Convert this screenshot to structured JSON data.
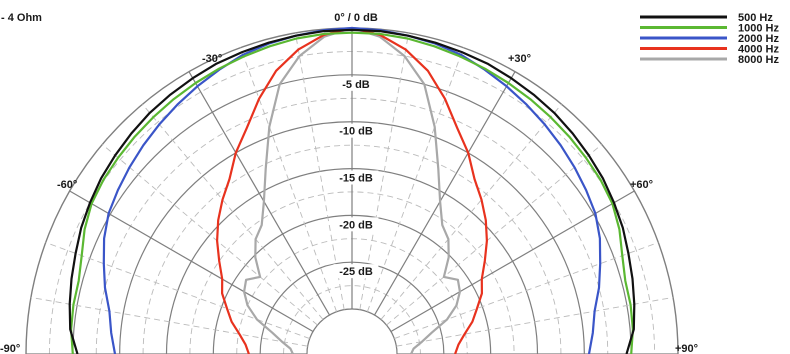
{
  "chart_data": {
    "type": "polar",
    "impedance_label": "- 4 Ohm",
    "radial_axis": {
      "unit": "dB",
      "range": [
        -30,
        0
      ],
      "ticks": [
        {
          "value": 0,
          "label": "0° / 0 dB"
        },
        {
          "value": -5,
          "label": "-5 dB"
        },
        {
          "value": -10,
          "label": "-10 dB"
        },
        {
          "value": -15,
          "label": "-15 dB"
        },
        {
          "value": -20,
          "label": "-20 dB"
        },
        {
          "value": -25,
          "label": "-25 dB"
        }
      ]
    },
    "angle_axis": {
      "range": [
        -90,
        90
      ],
      "ticks": [
        {
          "value": -90,
          "label": "-90°"
        },
        {
          "value": -60,
          "label": "-60°"
        },
        {
          "value": -30,
          "label": "-30°"
        },
        {
          "value": 30,
          "label": "+30°"
        },
        {
          "value": 60,
          "label": "+60°"
        },
        {
          "value": 90,
          "label": "+90°"
        }
      ]
    },
    "grid": true,
    "legend_position": "top-right",
    "series": [
      {
        "name": "500 Hz",
        "color": "#111111",
        "angles": [
          -90,
          -85,
          -80,
          -75,
          -70,
          -65,
          -60,
          -55,
          -50,
          -45,
          -40,
          -35,
          -30,
          -25,
          -20,
          -15,
          -10,
          -5,
          0,
          5,
          10,
          15,
          20,
          25,
          30,
          35,
          40,
          45,
          50,
          55,
          60,
          65,
          70,
          75,
          80,
          85,
          90
        ],
        "values": [
          -5.5,
          -4.6,
          -4.2,
          -3.8,
          -3.4,
          -2.9,
          -2.5,
          -2.1,
          -1.8,
          -1.5,
          -1.2,
          -1.0,
          -0.8,
          -0.6,
          -0.5,
          -0.4,
          -0.3,
          -0.2,
          -0.2,
          -0.2,
          -0.3,
          -0.4,
          -0.5,
          -0.6,
          -0.8,
          -1.0,
          -1.2,
          -1.5,
          -1.8,
          -2.1,
          -2.5,
          -2.9,
          -3.4,
          -3.8,
          -4.2,
          -4.6,
          -5.5
        ]
      },
      {
        "name": "1000 Hz",
        "color": "#5bb832",
        "angles": [
          -90,
          -85,
          -80,
          -75,
          -70,
          -65,
          -60,
          -55,
          -50,
          -45,
          -40,
          -35,
          -30,
          -25,
          -20,
          -15,
          -10,
          -5,
          0,
          5,
          10,
          15,
          20,
          25,
          30,
          35,
          40,
          45,
          50,
          55,
          60,
          65,
          70,
          75,
          80,
          85,
          90
        ],
        "values": [
          -5.0,
          -4.7,
          -4.6,
          -4.6,
          -4.1,
          -3.3,
          -2.7,
          -2.4,
          -2.2,
          -2.0,
          -1.8,
          -1.6,
          -1.4,
          -1.2,
          -1.0,
          -0.8,
          -0.6,
          -0.5,
          -0.5,
          -0.5,
          -0.6,
          -0.8,
          -1.0,
          -1.2,
          -1.4,
          -1.6,
          -1.8,
          -2.0,
          -2.2,
          -2.4,
          -2.7,
          -3.3,
          -4.1,
          -4.6,
          -4.6,
          -4.7,
          -5.0
        ]
      },
      {
        "name": "2000 Hz",
        "color": "#3a55c8",
        "angles": [
          -90,
          -85,
          -80,
          -75,
          -70,
          -65,
          -60,
          -55,
          -50,
          -45,
          -40,
          -35,
          -30,
          -25,
          -20,
          -15,
          -10,
          -5,
          0,
          5,
          10,
          15,
          20,
          25,
          30,
          35,
          40,
          45,
          50,
          55,
          60,
          65,
          70,
          75,
          80,
          85,
          90
        ],
        "values": [
          -9.5,
          -9.0,
          -8.5,
          -7.5,
          -6.6,
          -5.6,
          -4.8,
          -4.3,
          -3.8,
          -3.3,
          -2.8,
          -2.3,
          -1.8,
          -1.3,
          -0.8,
          -0.5,
          -0.3,
          -0.1,
          0.0,
          -0.1,
          -0.3,
          -0.5,
          -0.8,
          -1.3,
          -1.8,
          -2.3,
          -2.8,
          -3.3,
          -3.8,
          -4.3,
          -4.8,
          -5.6,
          -6.6,
          -7.5,
          -8.5,
          -9.0,
          -9.5
        ]
      },
      {
        "name": "4000 Hz",
        "color": "#e8321e",
        "angles": [
          -90,
          -85,
          -80,
          -75,
          -70,
          -65,
          -60,
          -55,
          -50,
          -45,
          -40,
          -35,
          -30,
          -25,
          -20,
          -15,
          -10,
          -5,
          0,
          5,
          10,
          15,
          20,
          25,
          30,
          35,
          40,
          45,
          50,
          55,
          60,
          65,
          70,
          75,
          80,
          85,
          90
        ],
        "values": [
          -23.8,
          -23.4,
          -22.6,
          -21.5,
          -20.6,
          -19.5,
          -18.8,
          -17.5,
          -16.0,
          -14.6,
          -13.3,
          -12.0,
          -10.0,
          -8.2,
          -5.8,
          -3.5,
          -1.8,
          -0.6,
          0.0,
          -0.6,
          -1.8,
          -3.5,
          -5.8,
          -8.2,
          -10.0,
          -12.0,
          -13.3,
          -14.6,
          -16.0,
          -17.5,
          -18.8,
          -19.5,
          -20.6,
          -21.5,
          -22.6,
          -23.4,
          -23.8
        ]
      },
      {
        "name": "8000 Hz",
        "color": "#a8a8a8",
        "angles": [
          -90,
          -85,
          -80,
          -75,
          -70,
          -65,
          -60,
          -55,
          -50,
          -45,
          -40,
          -35,
          -30,
          -25,
          -20,
          -15,
          -10,
          -5,
          0,
          5,
          10,
          15,
          20,
          25,
          30,
          35,
          40,
          45,
          50,
          55,
          60,
          65,
          70,
          75,
          80,
          85,
          90
        ],
        "values": [
          -28.5,
          -28.2,
          -27.2,
          -26.0,
          -24.0,
          -22.5,
          -21.5,
          -21.0,
          -22.0,
          -20.2,
          -18.8,
          -18.0,
          -16.0,
          -13.0,
          -9.0,
          -5.0,
          -2.5,
          -0.8,
          0.0,
          -0.8,
          -2.5,
          -5.0,
          -9.0,
          -13.0,
          -16.0,
          -18.0,
          -18.8,
          -20.2,
          -22.0,
          -21.0,
          -21.5,
          -22.5,
          -24.0,
          -26.0,
          -27.2,
          -28.2,
          -28.5
        ]
      }
    ]
  }
}
